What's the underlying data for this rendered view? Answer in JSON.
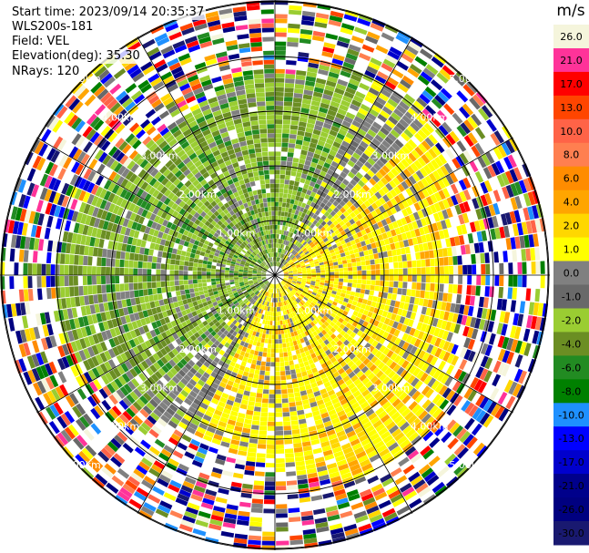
{
  "header": {
    "start_time": "Start time: 2023/09/14 20:35:37",
    "instrument": "WLS200s-181",
    "field": "Field: VEL",
    "elevation": "Elevation(deg): 35.30",
    "nrays": "NRays: 120"
  },
  "rings": [
    {
      "value": 1.0,
      "label": "1.00km"
    },
    {
      "value": 2.0,
      "label": "2.00km"
    },
    {
      "value": 3.0,
      "label": "3.00km"
    },
    {
      "value": 4.0,
      "label": "4.00km"
    },
    {
      "value": 5.0,
      "label": "5.00km"
    }
  ],
  "colorbar": {
    "unit": "m/s",
    "ticks": [
      "26.0",
      "21.0",
      "17.0",
      "13.0",
      "10.0",
      "8.0",
      "6.0",
      "4.0",
      "2.0",
      "1.0",
      "0.0",
      "-1.0",
      "-2.0",
      "-4.0",
      "-6.0",
      "-8.0",
      "-10.0",
      "-13.0",
      "-17.0",
      "-21.0",
      "-26.0",
      "-30.0"
    ],
    "colors": [
      "#f5f5dc",
      "#ff3399",
      "#ff0000",
      "#ff4500",
      "#ff6347",
      "#ff7f50",
      "#ff8c00",
      "#ffa500",
      "#ffd700",
      "#ffff00",
      "#808080",
      "#696969",
      "#9acd32",
      "#6b8e23",
      "#228b22",
      "#008000",
      "#1e90ff",
      "#0000ff",
      "#0000cd",
      "#00008b",
      "#000080",
      "#191970"
    ]
  }
}
